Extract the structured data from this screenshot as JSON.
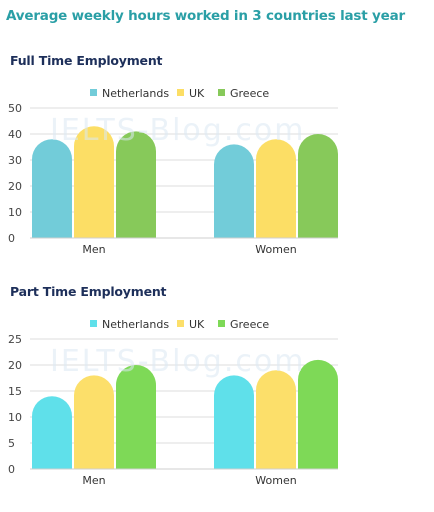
{
  "title": "Average weekly hours worked in 3 countries last year",
  "watermark": "IELTS-Blog.com",
  "chart_data": [
    {
      "type": "bar",
      "title": "Full Time Employment",
      "categories": [
        "Men",
        "Women"
      ],
      "series": [
        {
          "name": "Netherlands",
          "values": [
            38,
            36
          ],
          "color": "#72ccd9"
        },
        {
          "name": "UK",
          "values": [
            43,
            38
          ],
          "color": "#fcde65"
        },
        {
          "name": "Greece",
          "values": [
            41,
            40
          ],
          "color": "#87c95a"
        }
      ],
      "ylim": [
        0,
        50
      ],
      "yticks": [
        0,
        10,
        20,
        30,
        40,
        50
      ],
      "legend": "top-center",
      "grid": true
    },
    {
      "type": "bar",
      "title": "Part Time Employment",
      "categories": [
        "Men",
        "Women"
      ],
      "series": [
        {
          "name": "Netherlands",
          "values": [
            14,
            18
          ],
          "color": "#5fe0ea"
        },
        {
          "name": "UK",
          "values": [
            18,
            19
          ],
          "color": "#fcdf6a"
        },
        {
          "name": "Greece",
          "values": [
            20,
            21
          ],
          "color": "#7ed957"
        }
      ],
      "ylim": [
        0,
        25
      ],
      "yticks": [
        0,
        5,
        10,
        15,
        20,
        25
      ],
      "legend": "top-center",
      "grid": true
    }
  ]
}
